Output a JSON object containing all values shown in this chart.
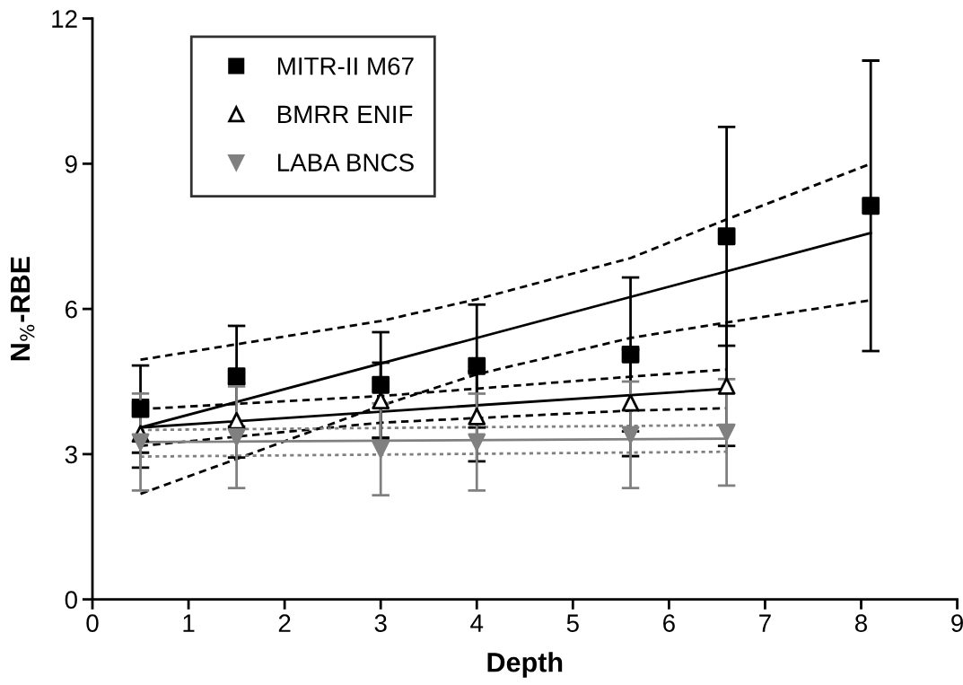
{
  "chart_data": {
    "type": "scatter",
    "xlabel": "Depth",
    "ylabel": "N$_{%}$-RBE",
    "xlim": [
      0,
      9
    ],
    "ylim": [
      0,
      12
    ],
    "xticks": [
      0,
      1,
      2,
      3,
      4,
      5,
      6,
      7,
      8,
      9
    ],
    "yticks": [
      0,
      3,
      6,
      9,
      12
    ],
    "grid": false,
    "legend": "top left",
    "series": [
      {
        "name": "MITR-II M67",
        "marker": "square",
        "color": "#000000",
        "x": [
          0.5,
          1.5,
          3,
          4,
          5.6,
          6.6,
          8.1
        ],
        "values": [
          3.93,
          4.61,
          4.43,
          4.82,
          5.06,
          7.5,
          8.13
        ],
        "errors": [
          0.9,
          1.04,
          1.09,
          1.27,
          1.59,
          2.26,
          3.0
        ]
      },
      {
        "name": "BMRR ENIF",
        "marker": "triangle",
        "color": "#000000",
        "x": [
          0.5,
          1.5,
          3,
          4,
          5.6,
          6.6
        ],
        "values": [
          3.42,
          3.69,
          4.11,
          3.78,
          4.06,
          4.41
        ],
        "errors": [
          0.7,
          0.76,
          0.78,
          0.93,
          1.1,
          1.24
        ]
      },
      {
        "name": "LABA BNCS",
        "marker": "triangle-down",
        "color": "#808080",
        "x": [
          0.5,
          1.5,
          3,
          4,
          5.6,
          6.6
        ],
        "values": [
          3.25,
          3.35,
          3.1,
          3.25,
          3.4,
          3.45
        ],
        "errors": [
          1.0,
          1.05,
          0.95,
          1.0,
          1.1,
          1.1
        ]
      },
      {
        "type": "line",
        "line_style": "solid",
        "color": "#000000",
        "x": [
          0.5,
          8.1
        ],
        "values": [
          3.55,
          7.57
        ]
      },
      {
        "type": "line",
        "line_style": "dashed",
        "color": "#000000",
        "x": [
          0.5,
          3,
          4,
          5.6,
          6.6,
          8.1
        ],
        "values": [
          4.95,
          5.75,
          6.2,
          7.05,
          7.85,
          9.0
        ]
      },
      {
        "type": "line",
        "line_style": "dashed",
        "color": "#000000",
        "x": [
          0.5,
          1.5,
          3,
          4,
          5.6,
          6.6,
          8.1
        ],
        "values": [
          2.18,
          2.9,
          4.0,
          4.65,
          5.4,
          5.72,
          6.18
        ]
      },
      {
        "type": "line",
        "line_style": "solid",
        "color": "#000000",
        "x": [
          0.5,
          6.6
        ],
        "values": [
          3.55,
          4.35
        ]
      },
      {
        "type": "line",
        "line_style": "dashed",
        "color": "#000000",
        "x": [
          0.5,
          3,
          5.6,
          6.6
        ],
        "values": [
          3.93,
          4.2,
          4.6,
          4.75
        ]
      },
      {
        "type": "line",
        "line_style": "dashed",
        "color": "#000000",
        "x": [
          0.5,
          3,
          5.6,
          6.6
        ],
        "values": [
          3.17,
          3.65,
          3.9,
          3.95
        ]
      },
      {
        "type": "line",
        "line_style": "solid",
        "color": "#808080",
        "x": [
          0.5,
          6.6
        ],
        "values": [
          3.25,
          3.32
        ]
      },
      {
        "type": "line",
        "line_style": "dotted",
        "color": "#808080",
        "x": [
          0.5,
          6.6
        ],
        "values": [
          3.5,
          3.6
        ]
      },
      {
        "type": "line",
        "line_style": "dotted",
        "color": "#808080",
        "x": [
          0.5,
          6.6
        ],
        "values": [
          2.95,
          3.05
        ]
      }
    ]
  }
}
